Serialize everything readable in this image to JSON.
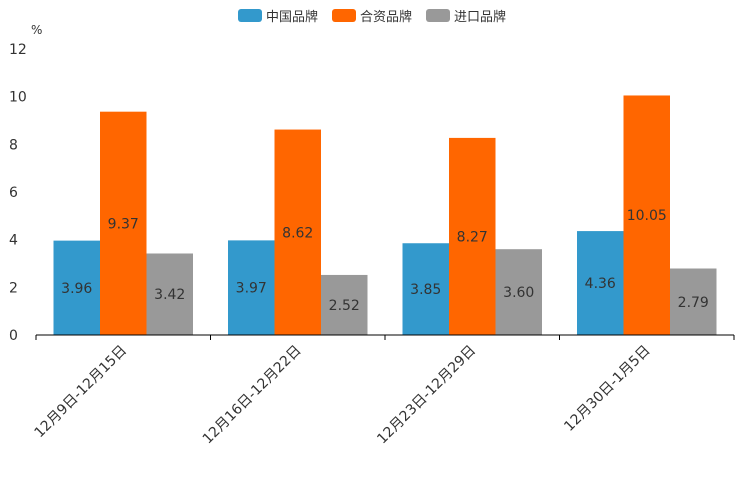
{
  "chart_data": {
    "type": "bar",
    "title": "",
    "ylabel": "%",
    "xlabel": "",
    "ylim": [
      0,
      12
    ],
    "yticks": [
      "0",
      "2",
      "4",
      "6",
      "8",
      "10",
      "12"
    ],
    "categories": [
      "12月9日-12月15日",
      "12月16日-12月22日",
      "12月23日-12月29日",
      "12月30日-1月5日"
    ],
    "series": [
      {
        "name": "中国品牌",
        "color": "#3399cc",
        "values": [
          3.96,
          3.97,
          3.85,
          4.36
        ],
        "labels": [
          "3.96",
          "3.97",
          "3.85",
          "4.36"
        ]
      },
      {
        "name": "合资品牌",
        "color": "#ff6600",
        "values": [
          9.37,
          8.62,
          8.27,
          10.05
        ],
        "labels": [
          "9.37",
          "8.62",
          "8.27",
          "10.05"
        ]
      },
      {
        "name": "进口品牌",
        "color": "#999999",
        "values": [
          3.42,
          2.52,
          3.6,
          2.79
        ],
        "labels": [
          "3.42",
          "2.52",
          "3.60",
          "2.79"
        ]
      }
    ]
  }
}
